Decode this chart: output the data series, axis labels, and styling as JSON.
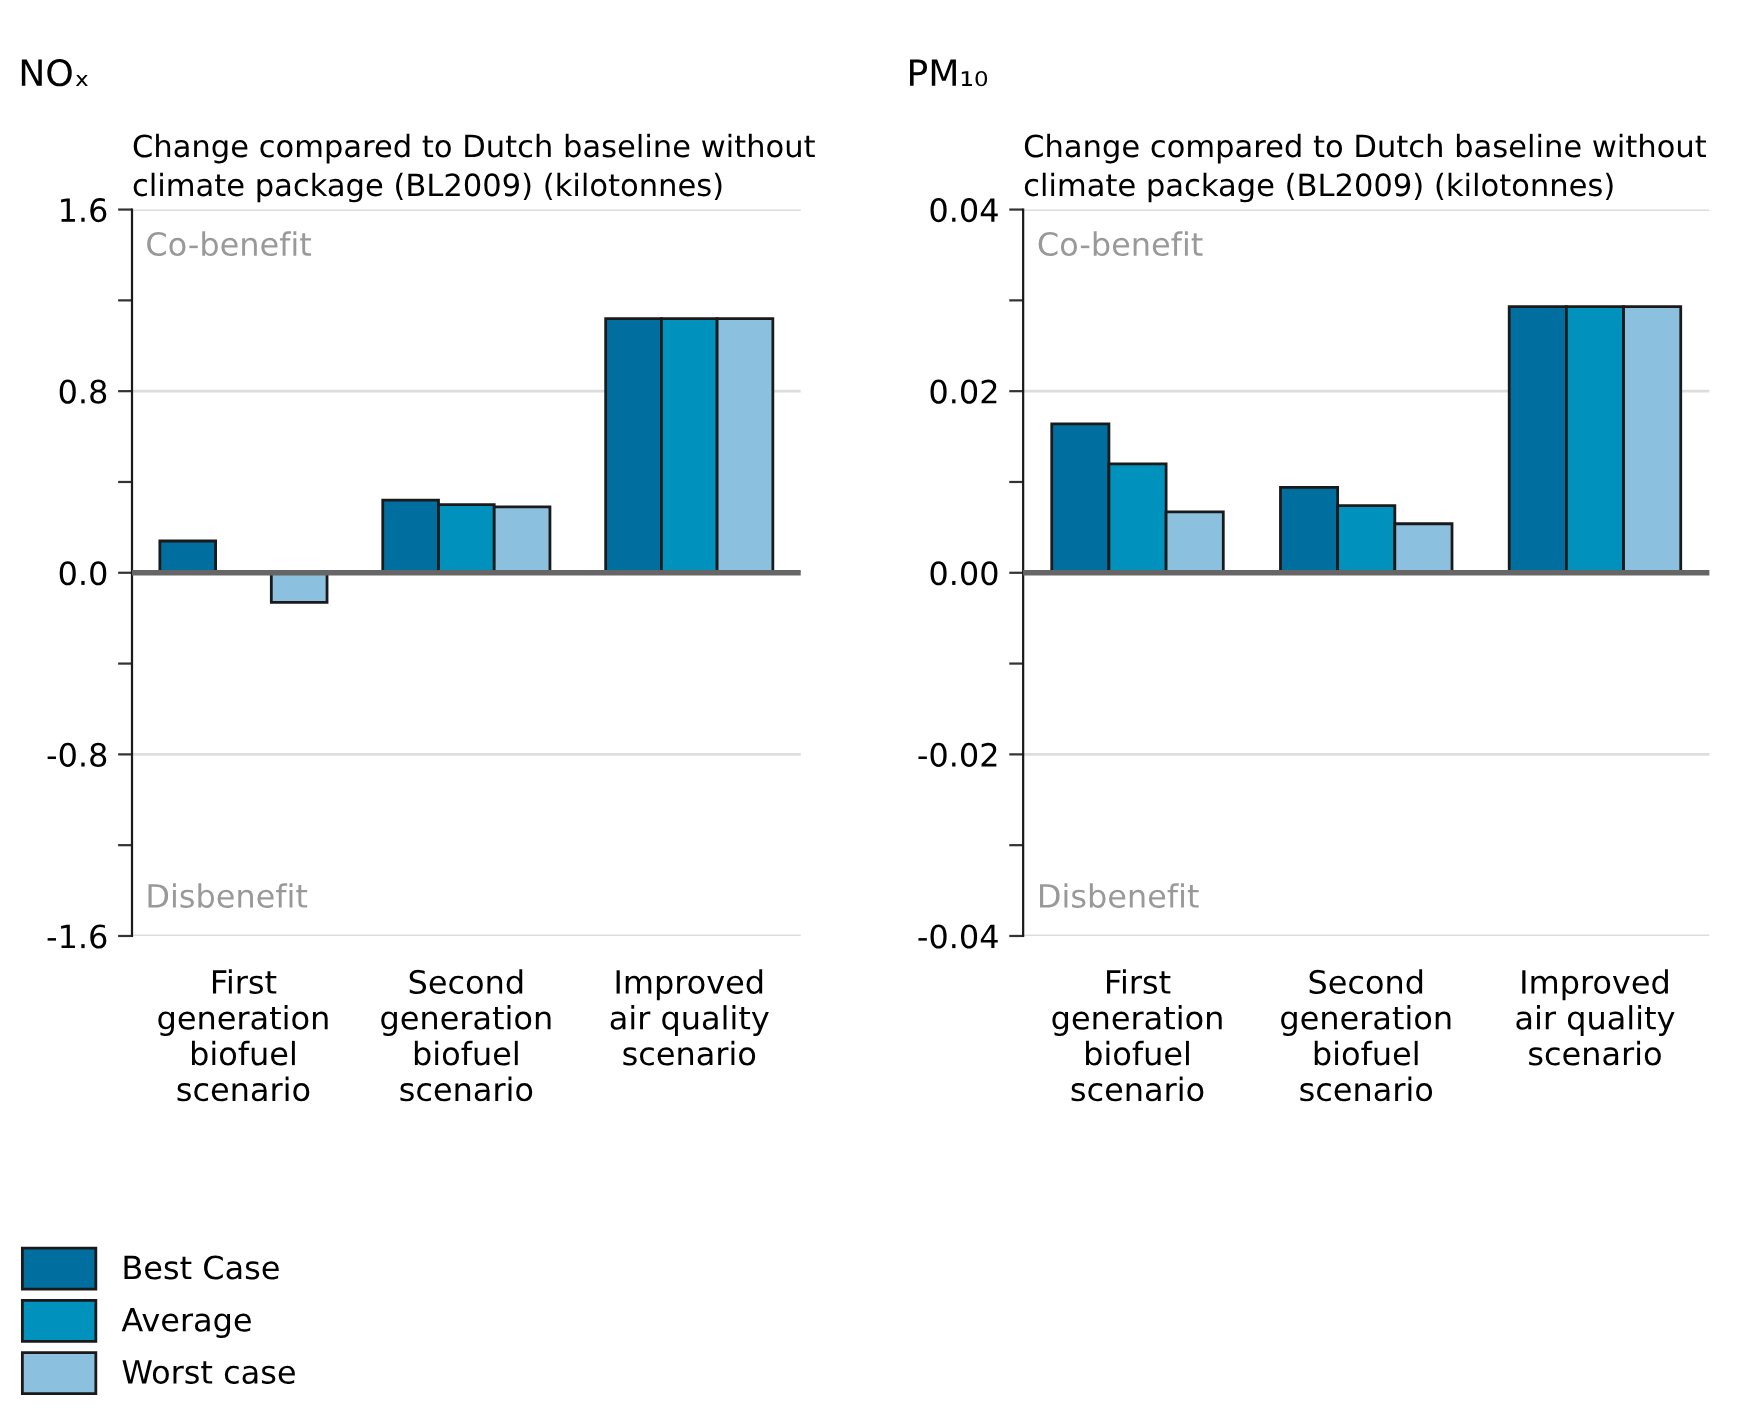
{
  "chart_data": [
    {
      "type": "bar",
      "title": "NOₓ",
      "subtitle": "Change compared to Dutch baseline without\nclimate package (BL2009) (kilotonnes)",
      "categories": [
        "First\ngeneration\nbiofuel\nscenario",
        "Second\ngeneration\nbiofuel\nscenario",
        "Improved\nair quality\nscenario"
      ],
      "series": [
        {
          "name": "Best Case",
          "color": "#006fa0",
          "values": [
            0.14,
            0.32,
            1.12
          ]
        },
        {
          "name": "Average",
          "color": "#0091bd",
          "values": [
            0.0,
            0.3,
            1.12
          ]
        },
        {
          "name": "Worst case",
          "color": "#8bc0de",
          "values": [
            -0.13,
            0.29,
            1.12
          ]
        }
      ],
      "ylim": [
        -1.6,
        1.6
      ],
      "yticks": [
        -1.6,
        {
          "value": -1.2,
          "label": null
        },
        -0.8,
        {
          "value": -0.4,
          "label": null
        },
        {
          "value": 0,
          "label": "0.0"
        },
        {
          "value": 0.4,
          "label": null
        },
        0.8,
        {
          "value": 1.2,
          "label": null
        },
        1.6
      ],
      "grid": "y",
      "legend": "bottom left",
      "annotations": [
        "Co-benefit",
        "Disbenefit"
      ]
    },
    {
      "type": "bar",
      "title": "PM₁₀",
      "subtitle": "Change compared to Dutch baseline without\nclimate package (BL2009) (kilotonnes)",
      "categories": [
        "First\ngeneration\nbiofuel\nscenario",
        "Second\ngeneration\nbiofuel\nscenario",
        "Improved\nair quality\nscenario"
      ],
      "series": [
        {
          "color": "#006fa0",
          "values": [
            0.0164,
            0.0094,
            0.0293
          ]
        },
        {
          "color": "#0091bd",
          "values": [
            0.012,
            0.0074,
            0.0293
          ]
        },
        {
          "color": "#8bc0de",
          "values": [
            0.0067,
            0.0054,
            0.0293
          ]
        }
      ],
      "ylim": [
        -0.04,
        0.04
      ],
      "yticks": [
        {
          "value": -0.04,
          "label": "-0.04"
        },
        {
          "value": -0.03,
          "label": null
        },
        {
          "value": -0.02,
          "label": "-0.02"
        },
        {
          "value": -0.01,
          "label": null
        },
        {
          "value": 0,
          "label": "0.00"
        },
        {
          "value": 0.01,
          "label": null
        },
        {
          "value": 0.02,
          "label": "0.02"
        },
        {
          "value": 0.03,
          "label": null
        },
        {
          "value": 0.04,
          "label": "0.04"
        }
      ],
      "grid": "y",
      "annotations": [
        "Co-benefit",
        "Disbenefit"
      ]
    }
  ]
}
